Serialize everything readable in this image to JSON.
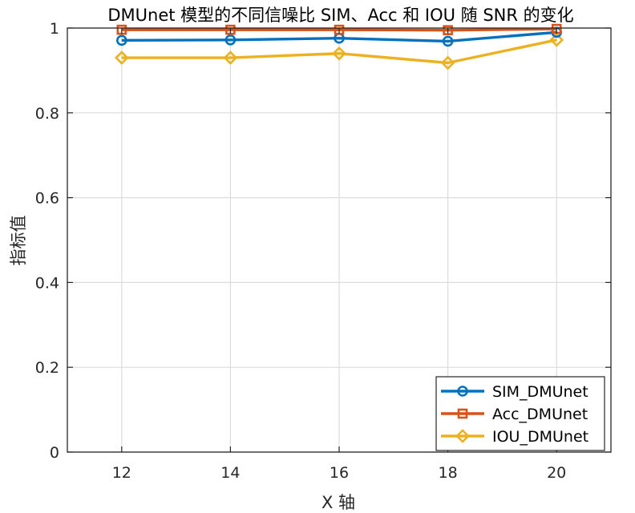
{
  "chart_data": {
    "type": "line",
    "title": "DMUnet 模型的不同信噪比 SIM、Acc 和 IOU 随 SNR 的变化",
    "xlabel": "X 轴",
    "ylabel": "指标值",
    "xlim": [
      11,
      21
    ],
    "ylim": [
      0,
      1
    ],
    "x": [
      12,
      14,
      16,
      18,
      20
    ],
    "xticks": [
      "12",
      "14",
      "16",
      "18",
      "20"
    ],
    "yticks": [
      "0",
      "0.2",
      "0.4",
      "0.6",
      "0.8",
      "1"
    ],
    "grid": true,
    "legend_position": "bottom-right",
    "series": [
      {
        "name": "SIM_DMUnet",
        "values": [
          0.971,
          0.972,
          0.976,
          0.969,
          0.99
        ],
        "color": "#0072BD",
        "marker": "circle"
      },
      {
        "name": "Acc_DMUnet",
        "values": [
          0.996,
          0.996,
          0.996,
          0.995,
          0.998
        ],
        "color": "#D95319",
        "marker": "square"
      },
      {
        "name": "IOU_DMUnet",
        "values": [
          0.93,
          0.93,
          0.94,
          0.918,
          0.972
        ],
        "color": "#EDB120",
        "marker": "diamond"
      }
    ]
  }
}
